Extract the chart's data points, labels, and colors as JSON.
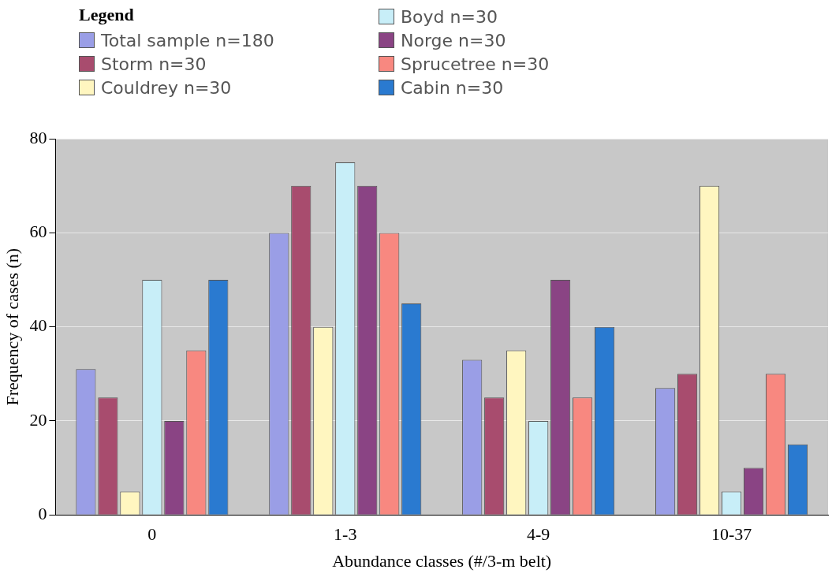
{
  "chart_data": {
    "type": "bar",
    "legend_title": "Legend",
    "xlabel": "Abundance classes (#/3-m belt)",
    "ylabel": "Frequency of cases (n)",
    "categories": [
      "0",
      "1-3",
      "4-9",
      "10-37"
    ],
    "series": [
      {
        "name": "Total sample n=180",
        "color": "#9a9ee6",
        "values": [
          31,
          60,
          33,
          27
        ]
      },
      {
        "name": "Storm n=30",
        "color": "#a84c6e",
        "values": [
          25,
          70,
          25,
          30
        ]
      },
      {
        "name": "Couldrey n=30",
        "color": "#fff6c0",
        "values": [
          5,
          40,
          35,
          70
        ]
      },
      {
        "name": "Boyd n=30",
        "color": "#c8eef8",
        "values": [
          50,
          75,
          20,
          5
        ]
      },
      {
        "name": "Norge n=30",
        "color": "#8a4484",
        "values": [
          20,
          70,
          50,
          10
        ]
      },
      {
        "name": "Sprucetree n=30",
        "color": "#f88880",
        "values": [
          35,
          60,
          25,
          30
        ]
      },
      {
        "name": "Cabin n=30",
        "color": "#2a7ad0",
        "values": [
          50,
          45,
          40,
          15
        ]
      }
    ],
    "ylim": [
      0,
      80
    ],
    "yticks": [
      0,
      20,
      40,
      60,
      80
    ],
    "grid": "y",
    "legend": "top left"
  }
}
